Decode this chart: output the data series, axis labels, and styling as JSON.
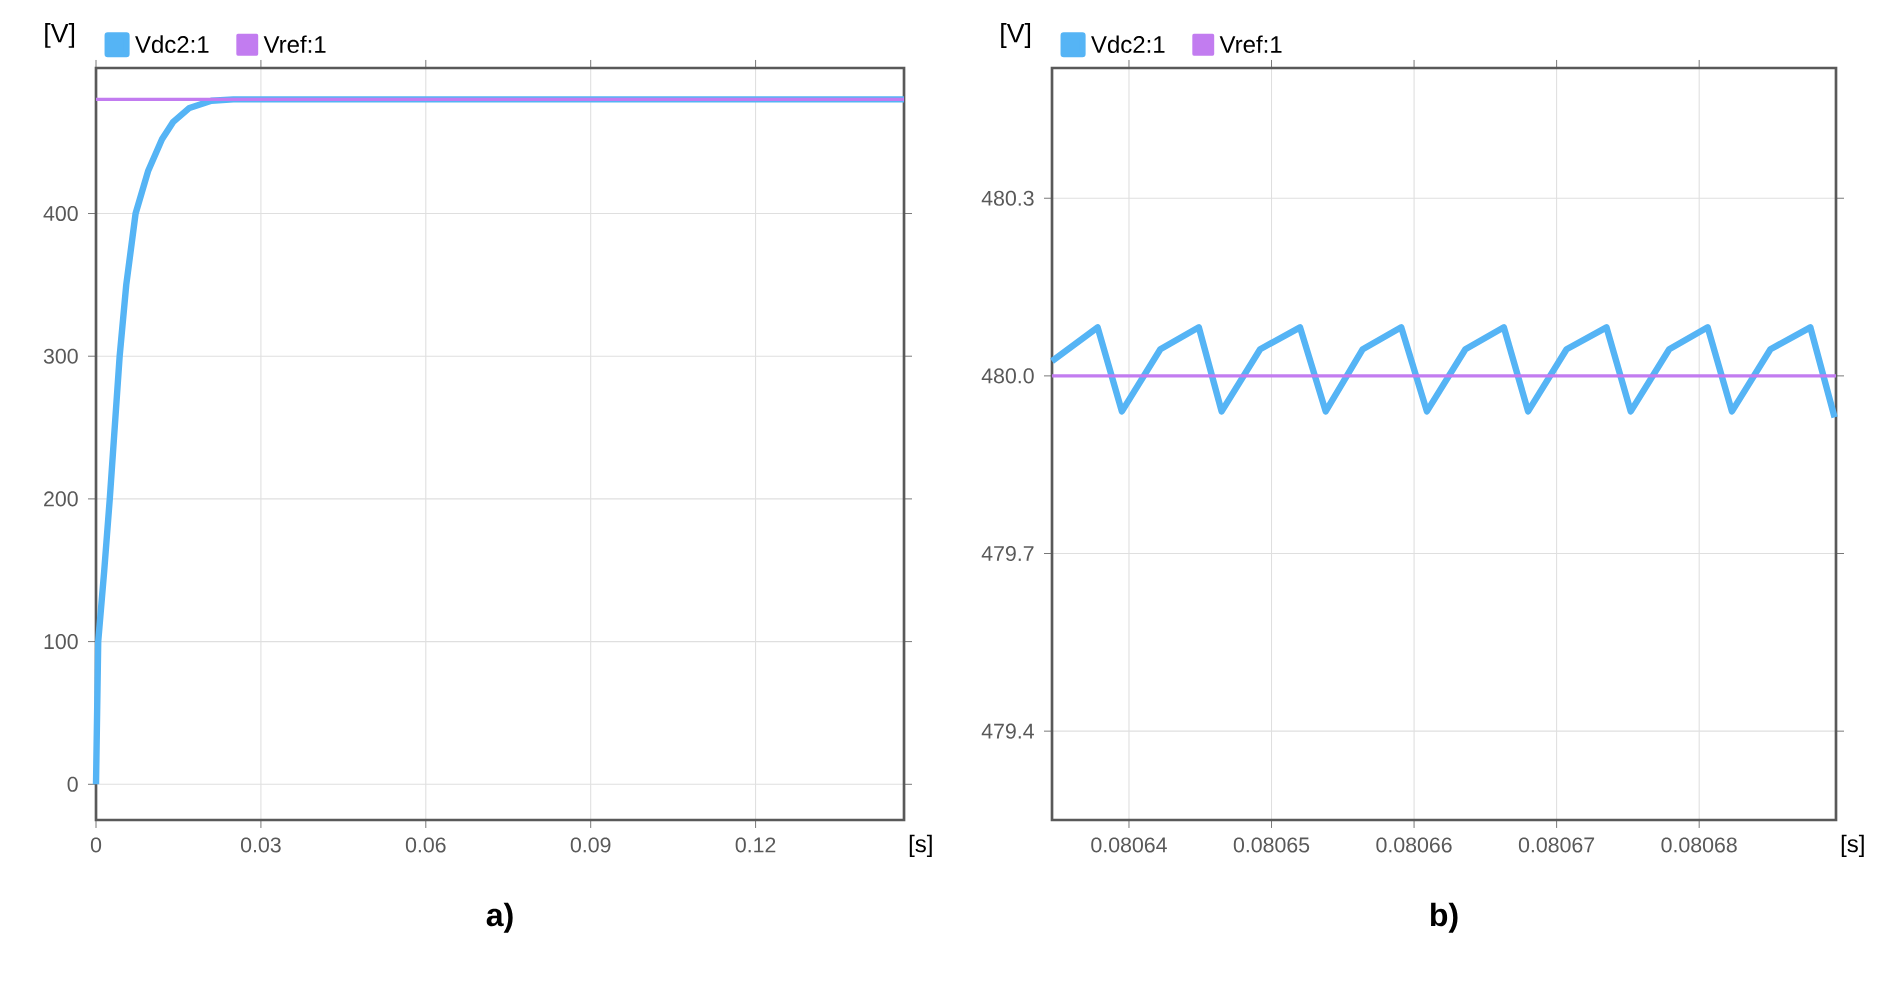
{
  "chart_data": [
    {
      "type": "line",
      "xlabel": "[s]",
      "ylabel": "[V]",
      "annotations": [
        "a)"
      ],
      "legend": "top left",
      "grid": true,
      "marker": "none",
      "line_style": "solid",
      "xlim": [
        0,
        0.147
      ],
      "ylim": [
        -25,
        502
      ],
      "xticks": [
        0,
        0.03,
        0.06,
        0.09,
        0.12
      ],
      "yticks": [
        0,
        100,
        200,
        300,
        400
      ],
      "series": [
        {
          "name": "Vdc2:1",
          "color": "#55b4f5",
          "x": [
            0,
            0.0004,
            0.0015,
            0.0025,
            0.0043,
            0.0055,
            0.0072,
            0.0095,
            0.012,
            0.014,
            0.017,
            0.021,
            0.025,
            0.147
          ],
          "values": [
            0,
            100,
            150,
            200,
            300,
            350,
            400,
            430,
            452,
            464,
            474,
            479,
            480,
            480
          ]
        },
        {
          "name": "Vref:1",
          "color": "#c27cf0",
          "x": [
            0,
            0.147
          ],
          "values": [
            480,
            480
          ]
        }
      ]
    },
    {
      "type": "line",
      "xlabel": "[s]",
      "ylabel": "[V]",
      "annotations": [
        "b)"
      ],
      "legend": "top left",
      "grid": true,
      "marker": "none",
      "line_style": "solid",
      "xlim": [
        0.0806346,
        0.0806896
      ],
      "ylim": [
        479.25,
        480.52
      ],
      "xticks": [
        0.08064,
        0.08065,
        0.08066,
        0.08067,
        0.08068
      ],
      "yticks": [
        {
          "value": 479.4,
          "label": "479.4"
        },
        {
          "value": 479.7,
          "label": "479.7"
        },
        {
          "value": 480,
          "label": "480.0"
        },
        {
          "value": 480.3,
          "label": "480.3"
        }
      ],
      "series": [
        {
          "name": "Vdc2:1",
          "color": "#55b4f5",
          "x": [
            0.0806346,
            0.0806378,
            0.0806395,
            0.0806422,
            0.0806449,
            0.0806465,
            0.0806492,
            0.080652,
            0.0806538,
            0.0806564,
            0.0806591,
            0.0806609,
            0.0806636,
            0.0806663,
            0.080668,
            0.0806707,
            0.0806735,
            0.0806752,
            0.0806779,
            0.0806806,
            0.0806823,
            0.080685,
            0.0806878,
            0.0806895
          ],
          "values": [
            480.025,
            480.082,
            479.94,
            480.045,
            480.082,
            479.94,
            480.045,
            480.082,
            479.94,
            480.045,
            480.082,
            479.94,
            480.045,
            480.082,
            479.94,
            480.045,
            480.082,
            479.94,
            480.045,
            480.082,
            479.94,
            480.045,
            480.082,
            479.93
          ]
        },
        {
          "name": "Vref:1",
          "color": "#c27cf0",
          "x": [
            0.0806346,
            0.0806896
          ],
          "values": [
            480,
            480
          ]
        }
      ]
    }
  ]
}
